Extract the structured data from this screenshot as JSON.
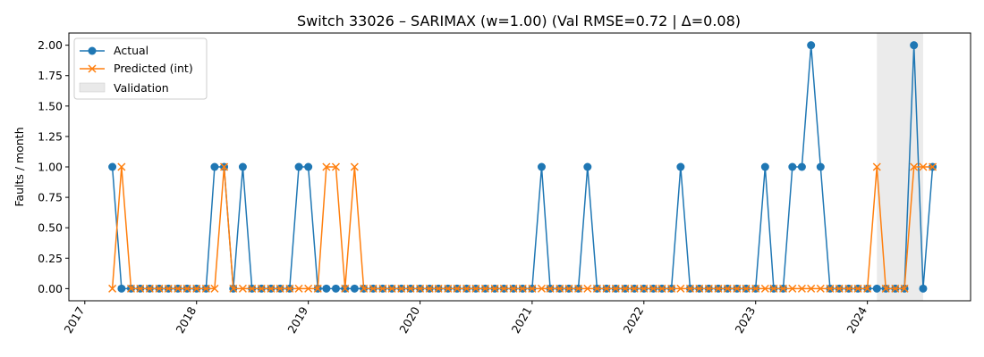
{
  "chart_data": {
    "type": "line",
    "title": "Switch 33026 – SARIMAX (w=1.00) (Val RMSE=0.72 | Δ=0.08)",
    "xlabel": "",
    "ylabel": "Faults / month",
    "x_start": "2017-04",
    "xlim": [
      "2016-11-10",
      "2024-12-03"
    ],
    "ylim": [
      -0.1,
      2.1
    ],
    "x_ticks": [
      "2017",
      "2018",
      "2019",
      "2020",
      "2021",
      "2022",
      "2023",
      "2024"
    ],
    "y_ticks": [
      "0.00",
      "0.25",
      "0.50",
      "0.75",
      "1.00",
      "1.25",
      "1.50",
      "1.75",
      "2.00"
    ],
    "grid": false,
    "legend_position": "top-left",
    "validation_span": [
      "2024-02",
      "2024-07"
    ],
    "legend": {
      "actual": "Actual",
      "predicted": "Predicted (int)",
      "validation": "Validation"
    },
    "colors": {
      "actual": "#1f77b4",
      "predicted": "#ff7f0e",
      "validation": "#d3d3d3"
    },
    "series": [
      {
        "name": "Actual",
        "marker": "circle",
        "values": [
          1,
          0,
          0,
          0,
          0,
          0,
          0,
          0,
          0,
          0,
          0,
          1,
          1,
          0,
          1,
          0,
          0,
          0,
          0,
          0,
          1,
          1,
          0,
          0,
          0,
          0,
          0,
          0,
          0,
          0,
          0,
          0,
          0,
          0,
          0,
          0,
          0,
          0,
          0,
          0,
          0,
          0,
          0,
          0,
          0,
          0,
          1,
          0,
          0,
          0,
          0,
          1,
          0,
          0,
          0,
          0,
          0,
          0,
          0,
          0,
          0,
          1,
          0,
          0,
          0,
          0,
          0,
          0,
          0,
          0,
          1,
          0,
          0,
          1,
          1,
          2,
          1,
          0,
          0,
          0,
          0,
          0,
          0,
          0,
          0,
          0,
          2,
          0,
          1
        ]
      },
      {
        "name": "Predicted (int)",
        "marker": "x",
        "values": [
          0,
          1,
          0,
          0,
          0,
          0,
          0,
          0,
          0,
          0,
          0,
          0,
          1,
          0,
          0,
          0,
          0,
          0,
          0,
          0,
          0,
          0,
          0,
          1,
          1,
          0,
          1,
          0,
          0,
          0,
          0,
          0,
          0,
          0,
          0,
          0,
          0,
          0,
          0,
          0,
          0,
          0,
          0,
          0,
          0,
          0,
          0,
          0,
          0,
          0,
          0,
          0,
          0,
          0,
          0,
          0,
          0,
          0,
          0,
          0,
          0,
          0,
          0,
          0,
          0,
          0,
          0,
          0,
          0,
          0,
          0,
          0,
          0,
          0,
          0,
          0,
          0,
          0,
          0,
          0,
          0,
          0,
          1,
          0,
          0,
          0,
          1,
          1,
          1
        ]
      }
    ]
  }
}
